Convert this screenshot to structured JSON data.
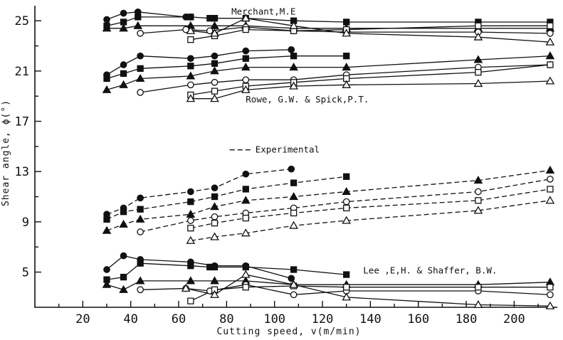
{
  "chart_data": {
    "type": "line",
    "title": "",
    "xlabel": "Cutting speed, v(m/min)",
    "ylabel": "Shear angle, ϕ(°)",
    "xlim": [
      0,
      218
    ],
    "ylim": [
      2.2,
      26.2
    ],
    "x_ticks": [
      20,
      40,
      60,
      80,
      100,
      120,
      140,
      160,
      180,
      200
    ],
    "y_ticks": [
      5,
      9,
      13,
      17,
      21,
      25
    ],
    "x_minor_ticks": [
      10,
      30,
      50,
      70,
      90,
      110,
      130,
      150,
      170,
      190,
      210
    ],
    "grid": false,
    "annotations": [
      {
        "text": "Merchant,M.E",
        "x": 82,
        "y": 25.5
      },
      {
        "text": "Rowe, G.W. & Spick,P.T.",
        "x": 88,
        "y": 18.5
      },
      {
        "text": "Experimental",
        "x": 92,
        "y": 14.5,
        "legend_style": "dashed"
      },
      {
        "text": "Lee ,E,H. & Shaffer, B.W.",
        "x": 137,
        "y": 4.9
      }
    ],
    "series": [
      {
        "group": "merchant",
        "marker": "filled-circle",
        "style": "solid",
        "x": [
          30,
          37,
          43,
          63,
          65
        ],
        "y": [
          25.1,
          25.6,
          25.7,
          25.3,
          25.3
        ]
      },
      {
        "group": "merchant",
        "marker": "filled-square",
        "style": "solid",
        "x": [
          30,
          37,
          43,
          65,
          73,
          75,
          88,
          108,
          130,
          185,
          215
        ],
        "y": [
          24.6,
          24.9,
          25.3,
          25.3,
          25.2,
          25.2,
          25.2,
          25.0,
          24.9,
          24.9,
          24.9
        ]
      },
      {
        "group": "merchant",
        "marker": "filled-triangle",
        "style": "solid",
        "x": [
          30,
          37,
          43,
          65,
          75,
          88,
          108,
          130,
          185,
          215
        ],
        "y": [
          24.4,
          24.4,
          24.6,
          24.6,
          24.6,
          24.6,
          24.4,
          24.4,
          24.4,
          24.4
        ]
      },
      {
        "group": "merchant",
        "marker": "open-circle",
        "style": "solid",
        "x": [
          44,
          63,
          73,
          88,
          108,
          130,
          185,
          215
        ],
        "y": [
          24.0,
          24.3,
          24.2,
          24.5,
          24.2,
          24.1,
          24.1,
          24.0
        ]
      },
      {
        "group": "merchant",
        "marker": "open-square",
        "style": "solid",
        "x": [
          65,
          75,
          88,
          108,
          130,
          185,
          215
        ],
        "y": [
          23.5,
          23.8,
          24.3,
          24.2,
          24.3,
          24.6,
          24.6
        ]
      },
      {
        "group": "merchant",
        "marker": "open-triangle",
        "style": "solid",
        "x": [
          65,
          75,
          88,
          108,
          130,
          185,
          215
        ],
        "y": [
          24.2,
          24.0,
          25.2,
          24.6,
          24.0,
          23.7,
          23.3
        ]
      },
      {
        "group": "rowe",
        "marker": "filled-circle",
        "style": "solid",
        "x": [
          30,
          37,
          44,
          65,
          75,
          88,
          107
        ],
        "y": [
          20.7,
          21.5,
          22.2,
          22.0,
          22.2,
          22.6,
          22.7
        ]
      },
      {
        "group": "rowe",
        "marker": "filled-square",
        "style": "solid",
        "x": [
          30,
          37,
          44,
          65,
          75,
          88,
          108,
          130
        ],
        "y": [
          20.4,
          20.8,
          21.2,
          21.4,
          21.6,
          22.0,
          22.2,
          22.2
        ]
      },
      {
        "group": "rowe",
        "marker": "filled-triangle",
        "style": "solid",
        "x": [
          30,
          37,
          44,
          65,
          75,
          88,
          108,
          130,
          185,
          215
        ],
        "y": [
          19.5,
          19.9,
          20.4,
          20.6,
          21.0,
          21.3,
          21.3,
          21.3,
          21.9,
          22.2
        ]
      },
      {
        "group": "rowe",
        "marker": "open-circle",
        "style": "solid",
        "x": [
          44,
          65,
          75,
          88,
          108,
          130,
          185,
          215
        ],
        "y": [
          19.3,
          19.9,
          20.1,
          20.3,
          20.3,
          20.7,
          21.3,
          21.5
        ]
      },
      {
        "group": "rowe",
        "marker": "open-square",
        "style": "solid",
        "x": [
          65,
          75,
          88,
          108,
          130,
          185,
          215
        ],
        "y": [
          19.1,
          19.4,
          19.8,
          20.1,
          20.4,
          20.9,
          21.5
        ]
      },
      {
        "group": "rowe",
        "marker": "open-triangle",
        "style": "solid",
        "x": [
          65,
          75,
          88,
          108,
          130,
          185,
          215
        ],
        "y": [
          18.8,
          18.8,
          19.5,
          19.8,
          19.9,
          20.0,
          20.2
        ]
      },
      {
        "group": "experimental",
        "marker": "filled-circle",
        "style": "dashed",
        "x": [
          30,
          37,
          44,
          65,
          75,
          88,
          107
        ],
        "y": [
          9.6,
          10.1,
          10.9,
          11.4,
          11.7,
          12.8,
          13.2
        ]
      },
      {
        "group": "experimental",
        "marker": "filled-square",
        "style": "dashed",
        "x": [
          30,
          37,
          44,
          65,
          75,
          88,
          108,
          130
        ],
        "y": [
          9.2,
          9.8,
          10.0,
          10.6,
          11.0,
          11.6,
          12.1,
          12.6
        ]
      },
      {
        "group": "experimental",
        "marker": "filled-triangle",
        "style": "dashed",
        "x": [
          30,
          37,
          44,
          65,
          75,
          88,
          108,
          130,
          185,
          215
        ],
        "y": [
          8.3,
          8.8,
          9.2,
          9.6,
          10.2,
          10.7,
          11.0,
          11.4,
          12.3,
          13.1
        ]
      },
      {
        "group": "experimental",
        "marker": "open-circle",
        "style": "dashed",
        "x": [
          44,
          65,
          75,
          88,
          108,
          130,
          185,
          215
        ],
        "y": [
          8.2,
          9.1,
          9.4,
          9.7,
          10.1,
          10.6,
          11.4,
          12.4
        ]
      },
      {
        "group": "experimental",
        "marker": "open-square",
        "style": "dashed",
        "x": [
          65,
          75,
          88,
          108,
          130,
          185,
          215
        ],
        "y": [
          8.5,
          8.9,
          9.3,
          9.7,
          10.1,
          10.7,
          11.6
        ]
      },
      {
        "group": "experimental",
        "marker": "open-triangle",
        "style": "dashed",
        "x": [
          65,
          75,
          88,
          108,
          130,
          185,
          215
        ],
        "y": [
          7.5,
          7.8,
          8.1,
          8.7,
          9.1,
          9.9,
          10.7
        ]
      },
      {
        "group": "lee",
        "marker": "filled-circle",
        "style": "solid",
        "x": [
          30,
          37,
          44,
          65,
          75,
          88,
          107
        ],
        "y": [
          5.2,
          6.3,
          6.0,
          5.8,
          5.5,
          5.5,
          4.5
        ]
      },
      {
        "group": "lee",
        "marker": "filled-square",
        "style": "solid",
        "x": [
          30,
          37,
          44,
          65,
          73,
          75,
          88,
          108,
          130
        ],
        "y": [
          4.4,
          4.6,
          5.7,
          5.5,
          5.4,
          5.4,
          5.4,
          5.2,
          4.8
        ]
      },
      {
        "group": "lee",
        "marker": "filled-triangle",
        "style": "solid",
        "x": [
          30,
          37,
          44,
          65,
          75,
          88,
          108,
          130,
          185,
          215
        ],
        "y": [
          4.0,
          3.6,
          4.3,
          4.3,
          4.3,
          4.3,
          4.0,
          4.0,
          4.0,
          4.2
        ]
      },
      {
        "group": "lee",
        "marker": "open-circle",
        "style": "solid",
        "x": [
          44,
          63,
          73,
          88,
          108,
          130,
          185,
          215
        ],
        "y": [
          3.6,
          3.7,
          3.5,
          4.0,
          3.2,
          3.5,
          3.5,
          3.2
        ]
      },
      {
        "group": "lee",
        "marker": "open-square",
        "style": "solid",
        "x": [
          65,
          75,
          88,
          108,
          130,
          185,
          215
        ],
        "y": [
          2.7,
          3.6,
          3.8,
          3.9,
          3.8,
          3.8,
          3.8
        ]
      },
      {
        "group": "lee",
        "marker": "open-triangle",
        "style": "solid",
        "x": [
          63,
          75,
          88,
          108,
          130,
          185,
          215
        ],
        "y": [
          3.7,
          3.2,
          4.8,
          4.0,
          3.0,
          2.4,
          2.3
        ]
      }
    ]
  }
}
